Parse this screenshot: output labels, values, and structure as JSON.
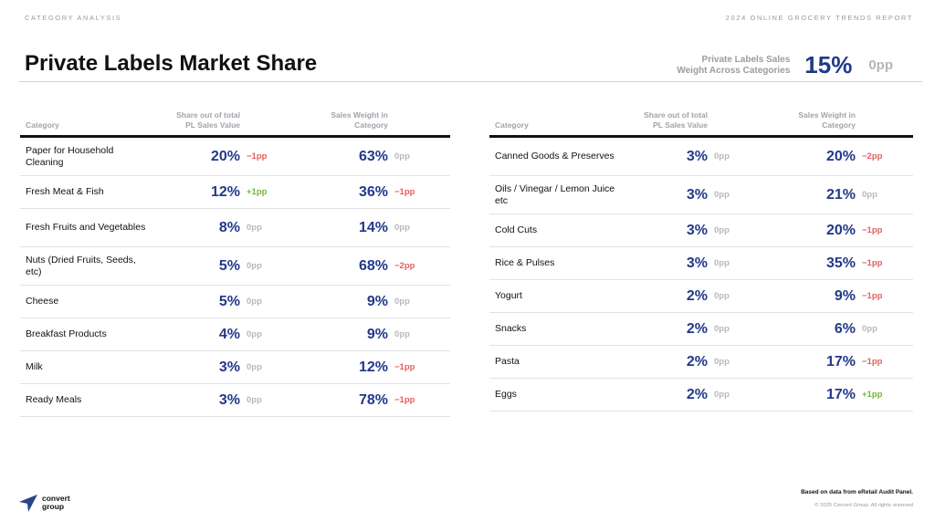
{
  "header": {
    "section": "CATEGORY ANALYSIS",
    "report": "2024 ONLINE GROCERY TRENDS REPORT",
    "title": "Private Labels Market Share"
  },
  "summary": {
    "label_line1": "Private Labels Sales",
    "label_line2": "Weight Across Categories",
    "value": "15%",
    "delta": "0pp"
  },
  "columns": {
    "category": "Category",
    "share_line1": "Share out of total",
    "share_line2": "PL Sales Value",
    "weight_line1": "Sales Weight in",
    "weight_line2": "Category"
  },
  "colors": {
    "value": "#22398a",
    "negative": "#e0605e",
    "positive": "#72b53a",
    "neutral": "#b8b8bd"
  },
  "left_table": [
    {
      "category": "Paper for Household Cleaning",
      "share": "20%",
      "share_delta": "−1pp",
      "weight": "63%",
      "weight_delta": "0pp"
    },
    {
      "category": "Fresh Meat & Fish",
      "share": "12%",
      "share_delta": "+1pp",
      "weight": "36%",
      "weight_delta": "−1pp"
    },
    {
      "category": "Fresh Fruits and Vegetables",
      "share": "8%",
      "share_delta": "0pp",
      "weight": "14%",
      "weight_delta": "0pp"
    },
    {
      "category": "Nuts (Dried Fruits, Seeds, etc)",
      "share": "5%",
      "share_delta": "0pp",
      "weight": "68%",
      "weight_delta": "−2pp"
    },
    {
      "category": "Cheese",
      "share": "5%",
      "share_delta": "0pp",
      "weight": "9%",
      "weight_delta": "0pp"
    },
    {
      "category": "Breakfast Products",
      "share": "4%",
      "share_delta": "0pp",
      "weight": "9%",
      "weight_delta": "0pp"
    },
    {
      "category": "Milk",
      "share": "3%",
      "share_delta": "0pp",
      "weight": "12%",
      "weight_delta": "−1pp"
    },
    {
      "category": "Ready Meals",
      "share": "3%",
      "share_delta": "0pp",
      "weight": "78%",
      "weight_delta": "−1pp"
    }
  ],
  "right_table": [
    {
      "category": "Canned Goods & Preserves",
      "share": "3%",
      "share_delta": "0pp",
      "weight": "20%",
      "weight_delta": "−2pp"
    },
    {
      "category": "Oils / Vinegar / Lemon Juice etc",
      "share": "3%",
      "share_delta": "0pp",
      "weight": "21%",
      "weight_delta": "0pp"
    },
    {
      "category": "Cold Cuts",
      "share": "3%",
      "share_delta": "0pp",
      "weight": "20%",
      "weight_delta": "−1pp"
    },
    {
      "category": "Rice & Pulses",
      "share": "3%",
      "share_delta": "0pp",
      "weight": "35%",
      "weight_delta": "−1pp"
    },
    {
      "category": "Yogurt",
      "share": "2%",
      "share_delta": "0pp",
      "weight": "9%",
      "weight_delta": "−1pp"
    },
    {
      "category": "Snacks",
      "share": "2%",
      "share_delta": "0pp",
      "weight": "6%",
      "weight_delta": "0pp"
    },
    {
      "category": "Pasta",
      "share": "2%",
      "share_delta": "0pp",
      "weight": "17%",
      "weight_delta": "−1pp"
    },
    {
      "category": "Eggs",
      "share": "2%",
      "share_delta": "0pp",
      "weight": "17%",
      "weight_delta": "+1pp"
    }
  ],
  "footer": {
    "logo_line1": "convert",
    "logo_line2": "group",
    "source": "Based on data from eRetail Audit Panel.",
    "copyright": "© 2025 Convert Group, All rights reserved"
  }
}
